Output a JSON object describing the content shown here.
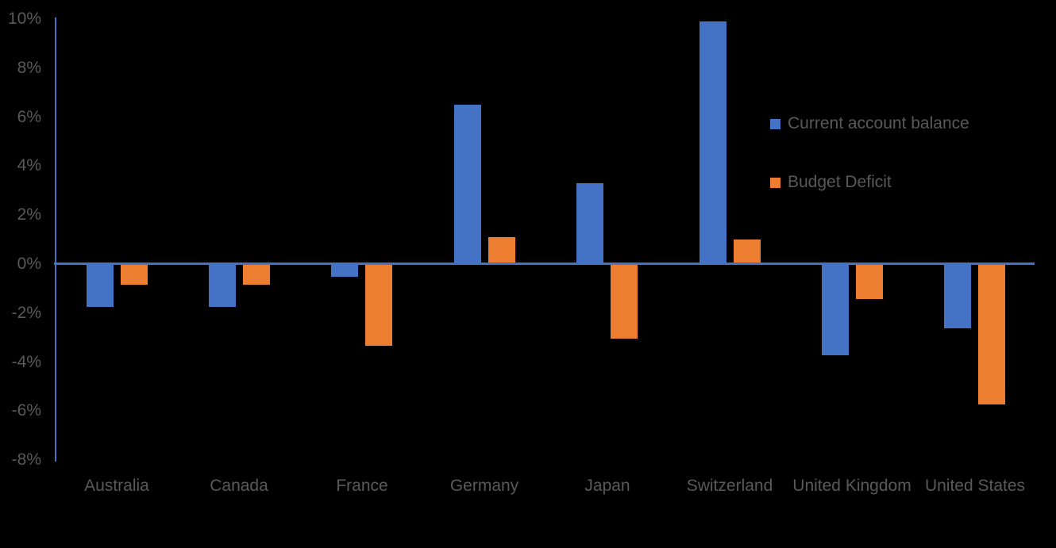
{
  "chart_data": {
    "type": "bar",
    "title": "",
    "categories": [
      "Australia",
      "Canada",
      "France",
      "Germany",
      "Japan",
      "Switzerland",
      "United Kingdom",
      "United States"
    ],
    "series": [
      {
        "name": "Current account balance",
        "color": "#4472C4",
        "values": [
          -1.7,
          -1.7,
          -0.5,
          6.5,
          3.3,
          9.9,
          -3.7,
          -2.6
        ]
      },
      {
        "name": "Budget Deficit",
        "color": "#ED7D31",
        "values": [
          -0.8,
          -0.8,
          -3.3,
          1.1,
          -3.0,
          1.0,
          -1.4,
          -5.7
        ]
      }
    ],
    "y_axis": {
      "tick_labels": [
        "10%",
        "8%",
        "6%",
        "4%",
        "2%",
        "0%",
        "-2%",
        "-4%",
        "-6%",
        "-8%"
      ],
      "tick_values": [
        10,
        8,
        6,
        4,
        2,
        0,
        -2,
        -4,
        -6,
        -8
      ],
      "ylim": [
        -8,
        10
      ]
    },
    "legend": {
      "position": "right-middle",
      "entries": [
        "Current account balance",
        "Budget Deficit"
      ]
    },
    "grid": false,
    "xlabel": "",
    "ylabel": "",
    "colors": {
      "axis": "#4472C4",
      "label_text": "#595959",
      "background": "#000000"
    }
  }
}
